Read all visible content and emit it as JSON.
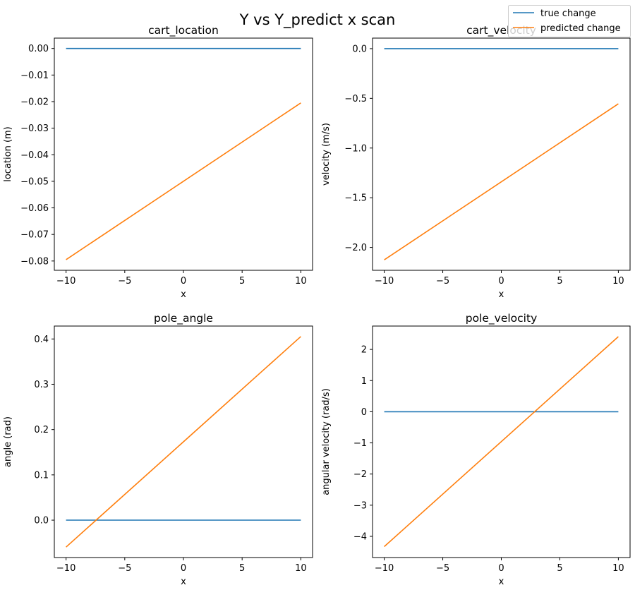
{
  "figure": {
    "title": "Y vs Y_predict x scan"
  },
  "legend": {
    "placement": "top-right",
    "entries": [
      {
        "label": "true change",
        "color": "#1f77b4"
      },
      {
        "label": "predicted change",
        "color": "#ff7f0e"
      }
    ]
  },
  "chart_data": [
    {
      "type": "line",
      "title": "cart_location",
      "xlabel": "x",
      "ylabel": "location (m)",
      "xlim": [
        -11,
        11
      ],
      "ylim": [
        -0.0835,
        0.0039
      ],
      "xticks": [
        -10,
        -5,
        0,
        5,
        10
      ],
      "xtick_labels": [
        "−10",
        "−5",
        "0",
        "5",
        "10"
      ],
      "yticks": [
        0.0,
        -0.01,
        -0.02,
        -0.03,
        -0.04,
        -0.05,
        -0.06,
        -0.07,
        -0.08
      ],
      "ytick_labels": [
        "0.00",
        "−0.01",
        "−0.02",
        "−0.03",
        "−0.04",
        "−0.05",
        "−0.06",
        "−0.07",
        "−0.08"
      ],
      "grid": false,
      "series": [
        {
          "name": "true change",
          "color": "#1f77b4",
          "x": [
            -10,
            10
          ],
          "y": [
            0.0,
            0.0
          ]
        },
        {
          "name": "predicted change",
          "color": "#ff7f0e",
          "x": [
            -10,
            10
          ],
          "y": [
            -0.0795,
            -0.0205
          ]
        }
      ]
    },
    {
      "type": "line",
      "title": "cart_velocity",
      "xlabel": "x",
      "ylabel": "velocity (m/s)",
      "xlim": [
        -11,
        11
      ],
      "ylim": [
        -2.23,
        0.106
      ],
      "xticks": [
        -10,
        -5,
        0,
        5,
        10
      ],
      "xtick_labels": [
        "−10",
        "−5",
        "0",
        "5",
        "10"
      ],
      "yticks": [
        0.0,
        -0.5,
        -1.0,
        -1.5,
        -2.0
      ],
      "ytick_labels": [
        "0.0",
        "−0.5",
        "−1.0",
        "−1.5",
        "−2.0"
      ],
      "grid": false,
      "series": [
        {
          "name": "true change",
          "color": "#1f77b4",
          "x": [
            -10,
            10
          ],
          "y": [
            0.0,
            0.0
          ]
        },
        {
          "name": "predicted change",
          "color": "#ff7f0e",
          "x": [
            -10,
            10
          ],
          "y": [
            -2.125,
            -0.555
          ]
        }
      ]
    },
    {
      "type": "line",
      "title": "pole_angle",
      "xlabel": "x",
      "ylabel": "angle (rad)",
      "xlim": [
        -11,
        11
      ],
      "ylim": [
        -0.0825,
        0.4285
      ],
      "xticks": [
        -10,
        -5,
        0,
        5,
        10
      ],
      "xtick_labels": [
        "−10",
        "−5",
        "0",
        "5",
        "10"
      ],
      "yticks": [
        0.0,
        0.1,
        0.2,
        0.3,
        0.4
      ],
      "ytick_labels": [
        "0.0",
        "0.1",
        "0.2",
        "0.3",
        "0.4"
      ],
      "grid": false,
      "series": [
        {
          "name": "true change",
          "color": "#1f77b4",
          "x": [
            -10,
            10
          ],
          "y": [
            0.0,
            0.0
          ]
        },
        {
          "name": "predicted change",
          "color": "#ff7f0e",
          "x": [
            -10,
            10
          ],
          "y": [
            -0.0595,
            0.4055
          ]
        }
      ]
    },
    {
      "type": "line",
      "title": "pole_velocity",
      "xlabel": "x",
      "ylabel": "angular velocity (rad/s)",
      "xlim": [
        -11,
        11
      ],
      "ylim": [
        -4.68,
        2.75
      ],
      "xticks": [
        -10,
        -5,
        0,
        5,
        10
      ],
      "xtick_labels": [
        "−10",
        "−5",
        "0",
        "5",
        "10"
      ],
      "yticks": [
        2,
        1,
        0,
        -1,
        -2,
        -3,
        -4
      ],
      "ytick_labels": [
        "2",
        "1",
        "0",
        "−1",
        "−2",
        "−3",
        "−4"
      ],
      "grid": false,
      "series": [
        {
          "name": "true change",
          "color": "#1f77b4",
          "x": [
            -10,
            10
          ],
          "y": [
            0.0,
            0.0
          ]
        },
        {
          "name": "predicted change",
          "color": "#ff7f0e",
          "x": [
            -10,
            10
          ],
          "y": [
            -4.33,
            2.41
          ]
        }
      ]
    }
  ]
}
